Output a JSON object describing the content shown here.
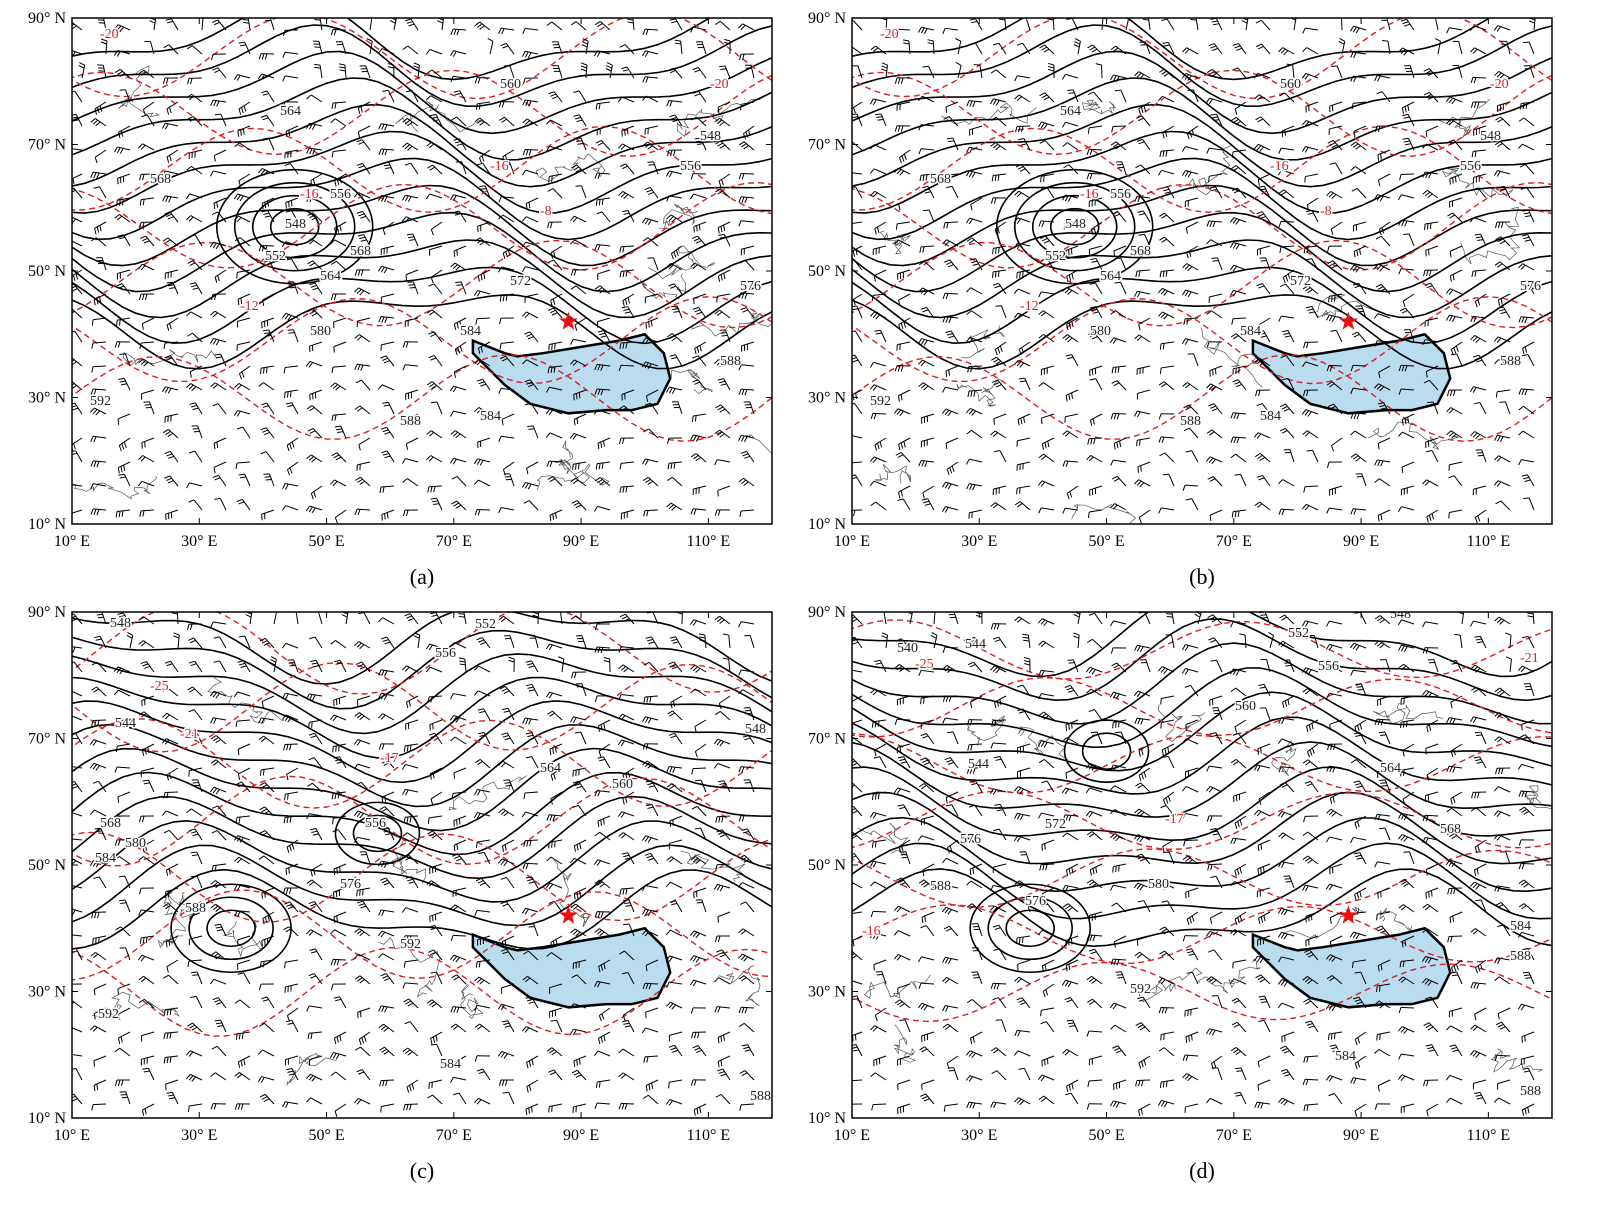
{
  "lon_ticks": [
    {
      "value": 10,
      "label": "10° E"
    },
    {
      "value": 30,
      "label": "30° E"
    },
    {
      "value": 50,
      "label": "50° E"
    },
    {
      "value": 70,
      "label": "70° E"
    },
    {
      "value": 90,
      "label": "90° E"
    },
    {
      "value": 110,
      "label": "110° E"
    }
  ],
  "lat_ticks": [
    {
      "value": 10,
      "label": "10° N"
    },
    {
      "value": 30,
      "label": "30° N"
    },
    {
      "value": 50,
      "label": "50° N"
    },
    {
      "value": 70,
      "label": "70° N"
    },
    {
      "value": 90,
      "label": "90° N"
    }
  ],
  "lon_range": [
    10,
    120
  ],
  "lat_range": [
    10,
    90
  ],
  "panels": [
    {
      "label": "(a)",
      "contour_labels": [
        "560",
        "564",
        "548",
        "556",
        "568",
        "556",
        "548",
        "552",
        "564",
        "568",
        "572",
        "576",
        "580",
        "584",
        "588",
        "592",
        "584",
        "588",
        "-20",
        "-20",
        "-16",
        "-16",
        "-12",
        "-8"
      ]
    },
    {
      "label": "(b)",
      "contour_labels": [
        "560",
        "564",
        "548",
        "556",
        "568",
        "556",
        "548",
        "552",
        "564",
        "568",
        "572",
        "576",
        "580",
        "584",
        "588",
        "592",
        "584",
        "588",
        "-20",
        "-20",
        "-16",
        "-16",
        "-12",
        "-8"
      ]
    },
    {
      "label": "(c)",
      "contour_labels": [
        "548",
        "552",
        "556",
        "544",
        "548",
        "564",
        "560",
        "556",
        "568",
        "580",
        "584",
        "576",
        "588",
        "592",
        "584",
        "588",
        "592",
        "-21",
        "-17",
        "-25"
      ]
    },
    {
      "label": "(d)",
      "contour_labels": [
        "540",
        "544",
        "548",
        "552",
        "556",
        "560",
        "544",
        "564",
        "568",
        "576",
        "572",
        "588",
        "580",
        "576",
        "592",
        "584",
        "588",
        "584",
        "588",
        "-21",
        "-25",
        "-17",
        "-16"
      ]
    }
  ]
}
